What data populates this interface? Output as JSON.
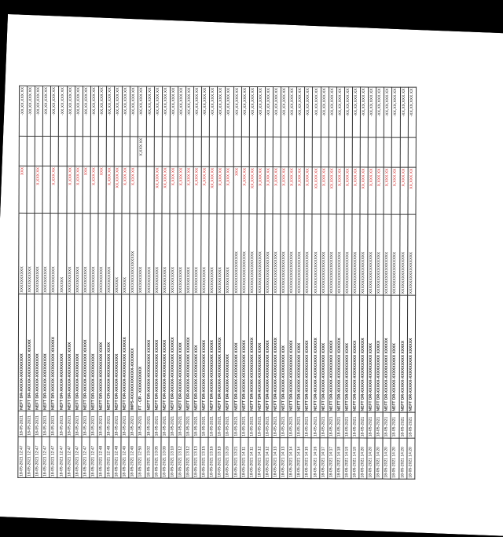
{
  "colors": {
    "background": "#000000",
    "paper": "#ffffff",
    "text": "#222222",
    "debit": "#d42a2a"
  },
  "statement": {
    "rows": [
      {
        "date": "18-05-2021 12:47",
        "value_date": "18-05-2021",
        "narration": "NEFT DR-XXXXX-XXXXXXXXX",
        "ref": "XXXXXXXXXX",
        "withdrawal": "XXX",
        "deposit": "",
        "balance": "-XX,XX,XXX.XX"
      },
      {
        "date": "18-05-2021 12:47",
        "value_date": "18-05-2021",
        "narration": "NEFT DR-XXXXX-XXXXXXXXX XXXXX",
        "ref": "XXXXXXXXXX",
        "withdrawal": "",
        "deposit": "",
        "balance": "-XX,XX,XXX.XX"
      },
      {
        "date": "18-05-2021 12:47",
        "value_date": "18-05-2021",
        "narration": "NEFT DR-XXXXX-XXXXXXXXX",
        "ref": "XXXXXXXXXX",
        "withdrawal": "X,XXX.XX",
        "deposit": "",
        "balance": "-XX,XX,XXX.XX"
      },
      {
        "date": "18-05-2021 12:47",
        "value_date": "18-05-2021",
        "narration": "NEFT DR-XXXXX-XXXXXXXXX",
        "ref": "XXXXXXXXXX",
        "withdrawal": "",
        "deposit": "",
        "balance": "-XX,XX,XXX.XX"
      },
      {
        "date": "18-05-2021 12:47",
        "value_date": "18-05-2021",
        "narration": "NEFT DR-XXXXX-XXXXXXXXX XXXXXX",
        "ref": "XXXXXXXXXX",
        "withdrawal": "X,XXX.XX",
        "deposit": "",
        "balance": "-XX,XX,XXX.XX"
      },
      {
        "date": "18-05-2021 12:47",
        "value_date": "18-05-2021",
        "narration": "NEFT DR-XXXXX-XXXXXXXXX",
        "ref": "XXXXXX",
        "withdrawal": "",
        "deposit": "",
        "balance": "-XX,XX,XXX.XX"
      },
      {
        "date": "18-05-2021 12:47",
        "value_date": "18-05-2021",
        "narration": "NEFT DR-XXXXX-XXXXXXXXX XXXX",
        "ref": "XXXXXXXXXX",
        "withdrawal": "X,XXX.XX",
        "deposit": "",
        "balance": "-XX,XX,XXX.XX"
      },
      {
        "date": "18-05-2021 12:47",
        "value_date": "18-05-2021",
        "narration": "NEFT DR-XXXXX-XXXXXXXXX",
        "ref": "XXXXXXXXXX",
        "withdrawal": "X,XXX.XX",
        "deposit": "",
        "balance": "-XX,XX,XXX.XX"
      },
      {
        "date": "18-05-2021 12:47",
        "value_date": "18-05-2021",
        "narration": "NEFT DR-XXXXX-XXXXXXXXX XXXXX",
        "ref": "XXXXXXXXXX",
        "withdrawal": "XXX",
        "deposit": "",
        "balance": "-XX,XX,XXX.XX"
      },
      {
        "date": "18-05-2021 12:47",
        "value_date": "18-05-2021",
        "narration": "NEFT DR-XXXXX-XXXXXXXXX",
        "ref": "XXXXXXXXXX",
        "withdrawal": "X,XXX.XX",
        "deposit": "",
        "balance": "-XX,XX,XXX.XX"
      },
      {
        "date": "18-05-2021 12:48",
        "value_date": "18-05-2021",
        "narration": "NEFT DR-XXXXX-XXXXXXXXX XXXX",
        "ref": "XXXXXXXXXX",
        "withdrawal": "XXX",
        "deposit": "",
        "balance": "-XX,XX,XXX.XX"
      },
      {
        "date": "18-05-2021 12:48",
        "value_date": "18-05-2021",
        "narration": "NEFT CR-XXXXX-XXXXXXXXX XXXX",
        "ref": "XXXXXXXXXX",
        "withdrawal": "X,XXX.XX",
        "deposit": "",
        "balance": "-XX,XX,XXX.XX"
      },
      {
        "date": "18-05-2021 12:48",
        "value_date": "18-05-2021",
        "narration": "NEFT DR-XXXXX-XXXXXXXXX",
        "ref": "XXXXXX",
        "withdrawal": "XX,XXX.XX",
        "deposit": "",
        "balance": "-XX,XX,XXX.XX"
      },
      {
        "date": "18-05-2021 12:49",
        "value_date": "18-05-2021",
        "narration": "NEFT DR-XXXXX-XXXXXXXXX XXXXXX",
        "ref": "XXXXXX",
        "withdrawal": "X,XXX.XX",
        "deposit": "",
        "balance": "-XX,XX,XXX.XX"
      },
      {
        "date": "18-05-2021 12:49",
        "value_date": "18-05-2021",
        "narration": "IMPS-XXXXXXXXXXXX-XXXXXXX",
        "ref": "XXXXXXXXXXXXXXXX",
        "withdrawal": "X,XXX.XX",
        "deposit": "",
        "balance": "-XX,XX,XXX.XX"
      },
      {
        "date": "18-05-2021 12:50",
        "value_date": "18-05-2021",
        "narration": "FT - CR - XXXXXXXXXX",
        "ref": "XXXXXXXXXX",
        "withdrawal": "",
        "deposit": "X,XXX.XX",
        "balance": "-XX,XX,XXX.XX"
      },
      {
        "date": "18-05-2021 13:02",
        "value_date": "18-05-2021",
        "narration": "NEFT DR-XXXXX-XXXXXXXXX XXXXX",
        "ref": "XXXXXXXXXX",
        "withdrawal": "",
        "deposit": "",
        "balance": "-XX,XX,XXX.XX"
      },
      {
        "date": "18-05-2021 13:05",
        "value_date": "18-05-2021",
        "narration": "NEFT DR-XXXXX-XXXXXXXXX XXXXX",
        "ref": "XXXXXXXXXX",
        "withdrawal": "XX,XXX.XX",
        "deposit": "",
        "balance": "-XX,XX,XXX.XX"
      },
      {
        "date": "18-05-2021 13:09",
        "value_date": "18-05-2021",
        "narration": "NEFT DR-XXXXX-XXXXXXXXX XXXXX",
        "ref": "XXXXXXXXXX",
        "withdrawal": "XX,XXX.XX",
        "deposit": "",
        "balance": "-XX,XX,XXX.XX"
      },
      {
        "date": "18-05-2021 13:10",
        "value_date": "18-05-2021",
        "narration": "NEFT DR-XXXXX-XXXXXXXXX XXXXXX",
        "ref": "XXXXXXXXXX",
        "withdrawal": "X,XXX.XX",
        "deposit": "",
        "balance": "-XX,XX,XXX.XX"
      },
      {
        "date": "18-05-2021 13:12",
        "value_date": "18-05-2021",
        "narration": "NEFT DR-XXXXX-XXXXXXXXX XXXX",
        "ref": "XXXXXXXXXX",
        "withdrawal": "X,XXX.XX",
        "deposit": "",
        "balance": "-XX,XX,XXX.XX"
      },
      {
        "date": "18-05-2021 13:12",
        "value_date": "18-05-2021",
        "narration": "NEFT DR-XXXXX-XXXXXXXXX XXXXXX",
        "ref": "XXXXXXXXXX",
        "withdrawal": "X,XXX.XX",
        "deposit": "",
        "balance": "-XX,XX,XXX.XX"
      },
      {
        "date": "18-05-2021 13:13",
        "value_date": "18-05-2021",
        "narration": "NEFT DR-XXXXX-XXXXXXXXX XXX",
        "ref": "XXXXXXXXXX",
        "withdrawal": "X,XXX.XX",
        "deposit": "",
        "balance": "-XX,XX,XXX.XX"
      },
      {
        "date": "18-05-2021 13:15",
        "value_date": "18-05-2021",
        "narration": "NEFT DR-XXXXX-XXXXXXXXX XXXXX",
        "ref": "XXXXXXXXXX",
        "withdrawal": "X,XXX.XX",
        "deposit": "",
        "balance": "-XX,XX,XXX.XX"
      },
      {
        "date": "18-05-2021 13:16",
        "value_date": "18-05-2021",
        "narration": "NEFT DR-XXXXX-XXXXXXXXX XXXXX",
        "ref": "XXXXXXXXXX",
        "withdrawal": "XX,XXX.XX",
        "deposit": "",
        "balance": "-XX,XX,XXX.XX"
      },
      {
        "date": "18-05-2021 13:19",
        "value_date": "18-05-2021",
        "narration": "NEFT DR-XXXXX-XXXXXXXXX XXXXXX",
        "ref": "XXXXXXXXXX",
        "withdrawal": "X,XXX.XX",
        "deposit": "",
        "balance": "-XX,XX,XXX.XX"
      },
      {
        "date": "18-05-2021 13:20",
        "value_date": "18-05-2021",
        "narration": "NEFT DR-XXXXX-XXXXXXXXX",
        "ref": "XXXXXXXXXX",
        "withdrawal": "X,XXX.XX",
        "deposit": "",
        "balance": "-XX,XX,XXX.XX"
      },
      {
        "date": "18-05-2021 13:21",
        "value_date": "18-05-2021",
        "narration": "NEFT DR-XXXXX-XXXXXXXXX XXXX",
        "ref": "XXXXXXXXXXXXXXXX",
        "withdrawal": "XXX",
        "deposit": "",
        "balance": "-XX,XX,XXX.XX"
      },
      {
        "date": "18-05-2021 14:11",
        "value_date": "18-05-2021",
        "narration": "NEFT DR-XXXXX-XXXXXXXXX XXXXX",
        "ref": "XXXXXXXXXXXXXXXX",
        "withdrawal": "X,XXX.XX",
        "deposit": "",
        "balance": "-XX,XX,XXX.XX"
      },
      {
        "date": "18-05-2021 14:11",
        "value_date": "18-05-2021",
        "narration": "NEFT DR-XXXXX-XXXXXXXXX XXXXXX",
        "ref": "XXXXXXXXXXXXXXXX",
        "withdrawal": "XX,XXX.XX",
        "deposit": "",
        "balance": "-XX,XX,XXX.XX"
      },
      {
        "date": "18-05-2021 14:12",
        "value_date": "18-05-2021",
        "narration": "NEFT DR-XXXXX-XXXXXXXXX XXXX",
        "ref": "XXXXXXXXXXXXXXXX",
        "withdrawal": "X,XXX.XX",
        "deposit": "",
        "balance": "-XX,XX,XXX.XX"
      },
      {
        "date": "18-05-2021 14:12",
        "value_date": "18-05-2021",
        "narration": "NEFT DR-XXXXX-XXXXXXXXX XXXXX",
        "ref": "XXXXXXXXXXXXXXXX",
        "withdrawal": "X,XXX.XX",
        "deposit": "",
        "balance": "-XX,XX,XXX.XX"
      },
      {
        "date": "18-05-2021 14:13",
        "value_date": "18-05-2021",
        "narration": "NEFT DR-XXXXX-XXXXXXXXX XXXXXX",
        "ref": "XXXXXXXXXXXXXXXX",
        "withdrawal": "X,XXX.XX",
        "deposit": "",
        "balance": "-XX,XX,XXX.XX"
      },
      {
        "date": "18-05-2021 14:13",
        "value_date": "18-05-2021",
        "narration": "NEFT DR-XXXXX-XXXXXXXXX XXX",
        "ref": "XXXXXXXXXXXXXXXX",
        "withdrawal": "X,XXX.XX",
        "deposit": "",
        "balance": "-XX,XX,XXX.XX"
      },
      {
        "date": "18-05-2021 14:14",
        "value_date": "18-05-2021",
        "narration": "NEFT DR-XXXXX-XXXXXXXXX XXXXX",
        "ref": "XXXXXXXXXXXXXXXX",
        "withdrawal": "X,XXX.XX",
        "deposit": "",
        "balance": "-XX,XX,XXX.XX"
      },
      {
        "date": "18-05-2021 14:14",
        "value_date": "18-05-2021",
        "narration": "NEFT DR-XXXXX-XXXXXXXXX XXXX",
        "ref": "XXXXXXXXXXXXXXXX",
        "withdrawal": "X,XXX.XX",
        "deposit": "",
        "balance": "-XX,XX,XXX.XX"
      },
      {
        "date": "18-05-2021 14:15",
        "value_date": "18-05-2021",
        "narration": "NEFT DR-XXXXX-XXXXXXXXX XXXXX",
        "ref": "XXXXXXXXXXXXXXXX",
        "withdrawal": "X,XXX.XX",
        "deposit": "",
        "balance": "-XX,XX,XXX.XX"
      },
      {
        "date": "18-05-2021 14:16",
        "value_date": "18-05-2021",
        "narration": "NEFT DR-XXXXX-XXXXXXXXX XXXXXX",
        "ref": "XXXXXXXXXXXXXXXX",
        "withdrawal": "XX,XXX.XX",
        "deposit": "",
        "balance": "-XX,XX,XXX.XX"
      },
      {
        "date": "18-05-2021 14:17",
        "value_date": "18-05-2021",
        "narration": "NEFT DR-XXXXX-XXXXXXXXX XXXX",
        "ref": "XXXXXXXXXXXXXXXX",
        "withdrawal": "X,XXX.XX",
        "deposit": "",
        "balance": "-XX,XX,XXX.XX"
      },
      {
        "date": "18-05-2021 14:17",
        "value_date": "18-05-2021",
        "narration": "NEFT DR-XXXXX-XXXXXXXXX XXXXX",
        "ref": "XXXXXXXXXXXXXXXX",
        "withdrawal": "XX,XXX.XX",
        "deposit": "",
        "balance": "-XX,XX,XXX.XX"
      },
      {
        "date": "18-05-2021 14:18",
        "value_date": "18-05-2021",
        "narration": "NEFT DR-XXXXX-XXXXXXXXX XXXXXX",
        "ref": "XXXXXXXXXXXXXXXX",
        "withdrawal": "X,XXX.XX",
        "deposit": "",
        "balance": "-XX,XX,XXX.XX"
      },
      {
        "date": "18-05-2021 14:19",
        "value_date": "18-05-2021",
        "narration": "NEFT DR-XXXXX-XXXXXXXXX XXXX",
        "ref": "XXXXXXXXXXXXXXXX",
        "withdrawal": "X,XXX.XX",
        "deposit": "",
        "balance": "-XX,XX,XXX.XX"
      },
      {
        "date": "18-05-2021 14:19",
        "value_date": "18-05-2021",
        "narration": "NEFT DR-XXXXX-XXXXXXXXX XXXXX",
        "ref": "XXXXXXXXXXXXXXXX",
        "withdrawal": "X,XXX.XX",
        "deposit": "",
        "balance": "-XX,XX,XXX.XX"
      },
      {
        "date": "18-05-2021 14:20",
        "value_date": "18-05-2021",
        "narration": "NEFT DR-XXXXX-XXXXXXXXX XXXXXX",
        "ref": "XXXXXXXXXXXXXXXX",
        "withdrawal": "XX,XXX.XX",
        "deposit": "",
        "balance": "-XX,XX,XXX.XX"
      },
      {
        "date": "18-05-2021 14:20",
        "value_date": "18-05-2021",
        "narration": "NEFT DR-XXXXX-XXXXXXXXX XXXX",
        "ref": "XXXXXXXXXXXXXXXX",
        "withdrawal": "X,XXX.XX",
        "deposit": "",
        "balance": "-XX,XX,XXX.XX"
      },
      {
        "date": "18-05-2021 14:20",
        "value_date": "18-05-2021",
        "narration": "NEFT DR-XXXXX-XXXXXXXXX XXXXX",
        "ref": "XXXXXXXXXXXXXXXX",
        "withdrawal": "X,XXX.XX",
        "deposit": "",
        "balance": "-XX,XX,XXX.XX"
      },
      {
        "date": "18-05-2021 14:20",
        "value_date": "18-05-2021",
        "narration": "NEFT DR-XXXXX-XXXXXXXXX XXXXXX",
        "ref": "XXXXXXXXXXXXXXXX",
        "withdrawal": "X,XXX.XX",
        "deposit": "",
        "balance": "-XX,XX,XXX.XX"
      },
      {
        "date": "18-05-2021 14:20",
        "value_date": "18-05-2021",
        "narration": "NEFT DR-XXXXX-XXXXXXXXX XXXX",
        "ref": "XXXXXXXXXXXXXXXX",
        "withdrawal": "X,XXX.XX",
        "deposit": "",
        "balance": "-XX,XX,XXX.XX"
      },
      {
        "date": "18-05-2021 14:20",
        "value_date": "18-05-2021",
        "narration": "NEFT DR-XXXXX-XXXXXXXXX XXXXX",
        "ref": "XXXXXXXXXXXXXXXX",
        "withdrawal": "X,XXX.XX",
        "deposit": "",
        "balance": "-XX,XX,XXX.XX"
      },
      {
        "date": "18-05-2021 14:20",
        "value_date": "18-05-2021",
        "narration": "NEFT DR-XXXXX-XXXXXXXXX XXXXXX",
        "ref": "XXXXXXXXXXXXXXXX",
        "withdrawal": "XX,XXX.XX",
        "deposit": "",
        "balance": "-XX,XX,XXX.XX"
      }
    ]
  }
}
